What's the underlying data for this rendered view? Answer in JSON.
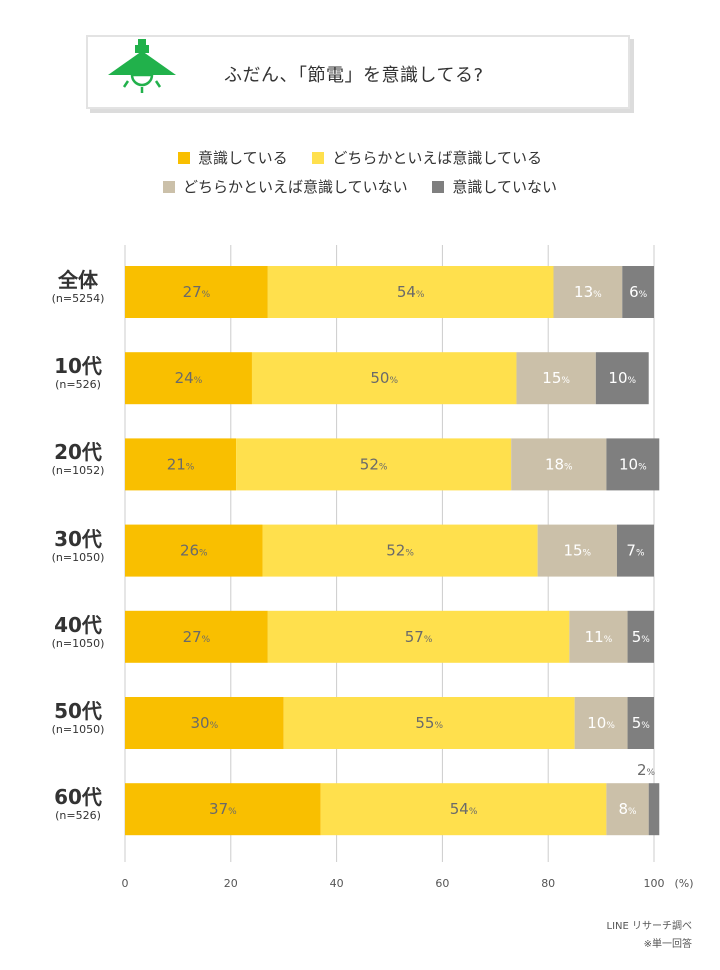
{
  "title": "ふだん、「節電」を意識してる?",
  "icons": {
    "title": "lamp-icon"
  },
  "colors": {
    "very_conscious": "#f9bf00",
    "somewhat_conscious": "#ffe04d",
    "somewhat_not": "#cbc0a9",
    "not_conscious": "#7f7f7f",
    "axis": "#cccccc",
    "label_text": "#6a6a6a"
  },
  "legend": [
    {
      "label": "意識している",
      "color": "#f9bf00"
    },
    {
      "label": "どちらかといえば意識している",
      "color": "#ffe04d"
    },
    {
      "label": "どちらかといえば意識していない",
      "color": "#cbc0a9"
    },
    {
      "label": "意識していない",
      "color": "#7f7f7f"
    }
  ],
  "chart_data": {
    "type": "bar",
    "orientation": "horizontal",
    "stacked": true,
    "title": "ふだん、「節電」を意識してる?",
    "categories": [
      "全体",
      "10代",
      "20代",
      "30代",
      "40代",
      "50代",
      "60代"
    ],
    "sample_sizes": [
      "(n=5254)",
      "(n=526)",
      "(n=1052)",
      "(n=1050)",
      "(n=1050)",
      "(n=1050)",
      "(n=526)"
    ],
    "series": [
      {
        "name": "意識している",
        "values": [
          27,
          24,
          21,
          26,
          27,
          30,
          37
        ]
      },
      {
        "name": "どちらかといえば意識している",
        "values": [
          54,
          50,
          52,
          52,
          57,
          55,
          54
        ]
      },
      {
        "name": "どちらかといえば意識していない",
        "values": [
          13,
          15,
          18,
          15,
          11,
          10,
          8
        ]
      },
      {
        "name": "意識していない",
        "values": [
          6,
          10,
          10,
          7,
          5,
          5,
          2
        ]
      }
    ],
    "xlim": [
      0,
      100
    ],
    "xticks": [
      0,
      20,
      40,
      60,
      80,
      100
    ],
    "xunit": "(%)",
    "value_suffix": "%"
  },
  "source": "LINE リサーチ調べ",
  "note": "※単一回答"
}
